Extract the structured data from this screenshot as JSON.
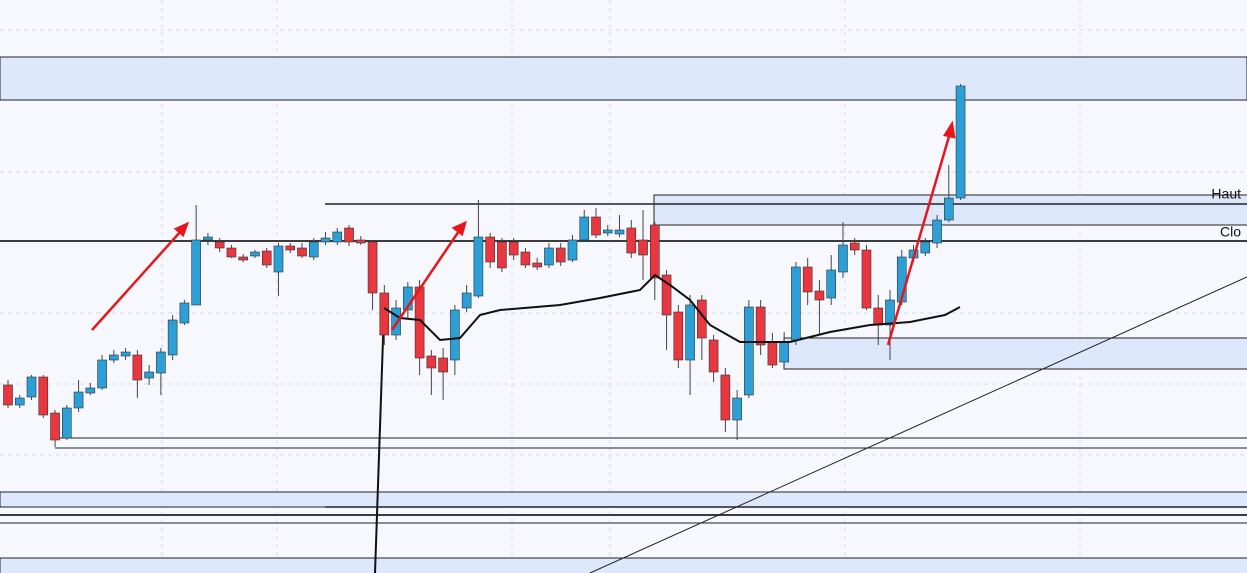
{
  "chart_data": {
    "type": "candlestick",
    "annotations": [
      "Haut",
      "Clo"
    ],
    "open": [
      188,
      168,
      176,
      196,
      160,
      135,
      165,
      180,
      185,
      213,
      217,
      218,
      195,
      200,
      218,
      250,
      268,
      333,
      331,
      325,
      316,
      317,
      322,
      301,
      327,
      325,
      316,
      331,
      331,
      345,
      333,
      331,
      280,
      238,
      263,
      286,
      217,
      215,
      213,
      265,
      277,
      336,
      331,
      331,
      321,
      310,
      308,
      325,
      313,
      333,
      356,
      340,
      339,
      345,
      333,
      348,
      298,
      261,
      213,
      273,
      233,
      198,
      153,
      178,
      266,
      231,
      211,
      233,
      306,
      282,
      275,
      301,
      330,
      323,
      265,
      248,
      271,
      315,
      320,
      330,
      353,
      375
    ],
    "high": [
      193,
      178,
      198,
      198,
      163,
      168,
      193,
      190,
      218,
      223,
      225,
      223,
      208,
      225,
      258,
      273,
      368,
      340,
      335,
      328,
      319,
      323,
      325,
      330,
      330,
      330,
      335,
      341,
      345,
      348,
      337,
      333,
      288,
      273,
      291,
      293,
      223,
      225,
      268,
      288,
      373,
      340,
      335,
      335,
      325,
      315,
      330,
      330,
      338,
      363,
      365,
      348,
      358,
      353,
      363,
      351,
      303,
      268,
      278,
      278,
      238,
      205,
      183,
      273,
      273,
      240,
      241,
      311,
      315,
      293,
      318,
      351,
      335,
      328,
      278,
      283,
      323,
      328,
      335,
      358,
      408,
      489
    ],
    "low": [
      165,
      165,
      173,
      155,
      126,
      133,
      161,
      178,
      183,
      210,
      213,
      175,
      188,
      178,
      213,
      248,
      268,
      328,
      321,
      315,
      311,
      315,
      305,
      277,
      320,
      315,
      313,
      328,
      328,
      327,
      328,
      263,
      228,
      233,
      255,
      198,
      178,
      173,
      198,
      261,
      275,
      305,
      301,
      313,
      305,
      303,
      305,
      307,
      311,
      331,
      335,
      337,
      336,
      315,
      293,
      273,
      223,
      205,
      178,
      213,
      191,
      141,
      133,
      175,
      218,
      205,
      208,
      228,
      268,
      238,
      268,
      295,
      318,
      263,
      228,
      213,
      268,
      311,
      317,
      325,
      351,
      373
    ],
    "close": [
      168,
      175,
      196,
      158,
      133,
      165,
      181,
      185,
      213,
      218,
      221,
      193,
      201,
      221,
      253,
      270,
      333,
      336,
      325,
      316,
      313,
      321,
      308,
      327,
      323,
      317,
      331,
      335,
      341,
      331,
      330,
      280,
      238,
      265,
      286,
      215,
      205,
      201,
      263,
      280,
      336,
      311,
      305,
      318,
      308,
      306,
      325,
      311,
      333,
      356,
      338,
      343,
      343,
      320,
      318,
      295,
      258,
      213,
      268,
      235,
      201,
      153,
      175,
      266,
      228,
      208,
      231,
      306,
      281,
      273,
      303,
      328,
      323,
      265,
      248,
      273,
      316,
      323,
      331,
      353,
      375,
      487
    ],
    "ylim": [
      0,
      573
    ],
    "colors": {
      "up": "#2b9fd6",
      "down": "#e8373e"
    }
  }
}
